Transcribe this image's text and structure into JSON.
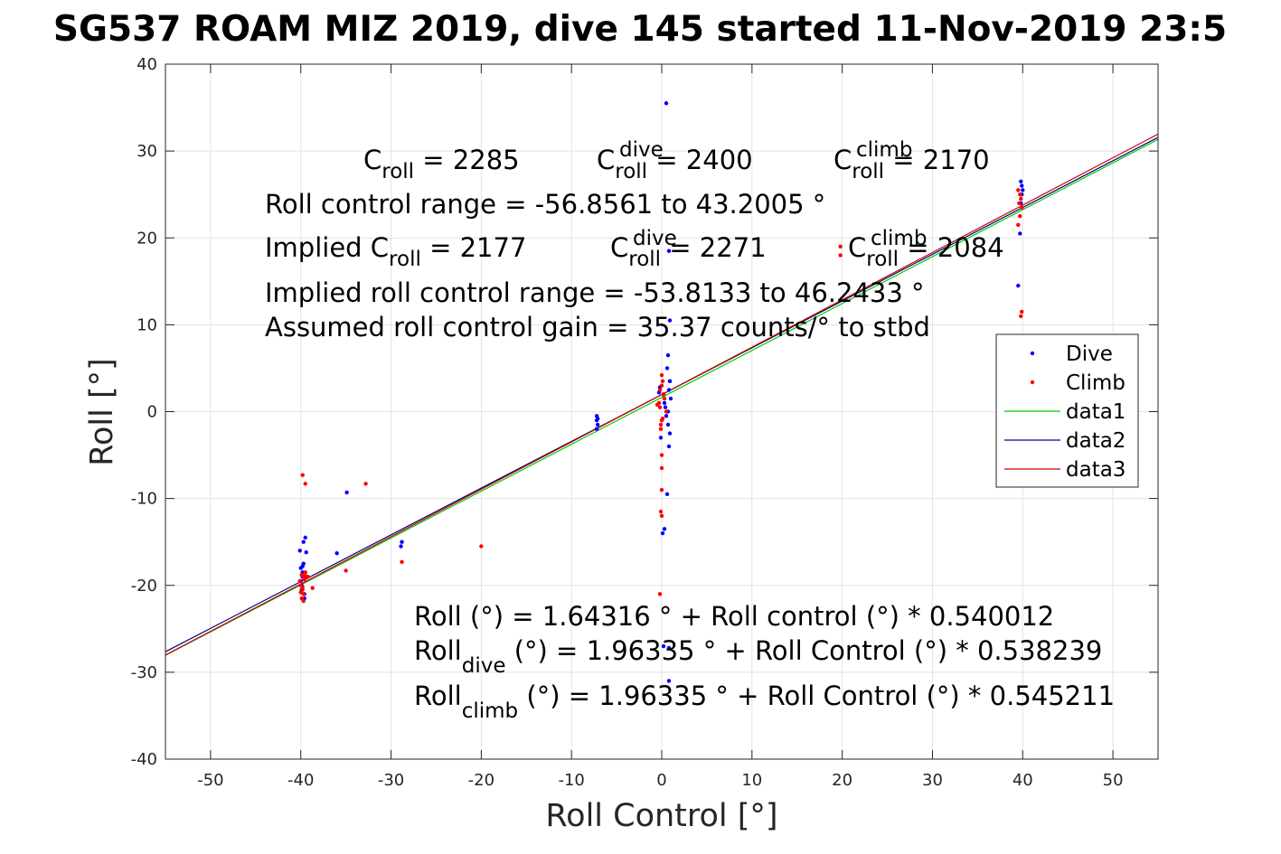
{
  "chart_data": {
    "type": "scatter",
    "title": "SG537 ROAM MIZ 2019, dive 145 started 11-Nov-2019 23:5",
    "xlabel": "Roll Control [°]",
    "ylabel": "Roll [°]",
    "xlim": [
      -55,
      55
    ],
    "ylim": [
      -40,
      40
    ],
    "xticks": [
      -50,
      -40,
      -30,
      -20,
      -10,
      0,
      10,
      20,
      30,
      40,
      50
    ],
    "yticks": [
      -40,
      -30,
      -20,
      -10,
      0,
      10,
      20,
      30,
      40
    ],
    "grid": true,
    "legend_position": "right",
    "legend": [
      {
        "label": "Dive",
        "color": "#0000ff",
        "marker": "dot"
      },
      {
        "label": "Climb",
        "color": "#ff0000",
        "marker": "dot"
      },
      {
        "label": "data1",
        "color": "#00cc00",
        "marker": "line"
      },
      {
        "label": "data2",
        "color": "#000080",
        "marker": "line"
      },
      {
        "label": "data3",
        "color": "#cc0000",
        "marker": "line"
      }
    ],
    "lines": [
      {
        "name": "data1",
        "color": "#00cc00",
        "x": [
          -55,
          55
        ],
        "y": [
          -28.05,
          31.34
        ]
      },
      {
        "name": "data2",
        "color": "#000080",
        "x": [
          -55,
          55
        ],
        "y": [
          -27.64,
          31.57
        ]
      },
      {
        "name": "data3",
        "color": "#cc0000",
        "x": [
          -55,
          55
        ],
        "y": [
          -28.02,
          31.95
        ]
      }
    ],
    "series": [
      {
        "name": "Dive",
        "color": "#0000ff",
        "x": [
          -40,
          -39.8,
          -39.7,
          -39.9,
          -39.6,
          -39.5,
          -40.1,
          -39.8,
          -39.7,
          -39.9,
          -40,
          -39.6,
          -39.5,
          -39.8,
          -39.4,
          -36,
          -34.9,
          -28.9,
          -28.8,
          -7.2,
          -7.2,
          -7.1,
          -7.2,
          -7.1,
          0.5,
          0.8,
          0.9,
          0.7,
          0.6,
          0.9,
          0.8,
          1.0,
          0.4,
          -0.2,
          0.2,
          0.3,
          0.5,
          0.7,
          0.9,
          0.8,
          0.6,
          0.3,
          0.1,
          -0.1,
          -0.3,
          0.2,
          0.8,
          0.8,
          0.7,
          0.9,
          39.8,
          39.9,
          40.0,
          39.9,
          39.7,
          39.5,
          39.8
        ],
        "y": [
          -19.5,
          -18.5,
          -17.5,
          -20.5,
          -21.0,
          -14.5,
          -16.0,
          -19.0,
          -15.0,
          -20.0,
          -18.0,
          -21.5,
          -19.0,
          -17.8,
          -16.2,
          -16.3,
          -9.3,
          -15.5,
          -15.0,
          -0.5,
          -1.0,
          -1.5,
          -2.0,
          -0.8,
          35.5,
          18.5,
          10.5,
          6.5,
          5.0,
          3.5,
          2.5,
          1.5,
          0.5,
          2.8,
          2.0,
          1.0,
          -0.5,
          -1.5,
          -2.5,
          -4.0,
          -9.5,
          -13.5,
          -14.0,
          -3.0,
          2.2,
          -27.0,
          -31.0,
          -27.2,
          0.0,
          3.5,
          26.5,
          26.0,
          25.5,
          25.0,
          20.5,
          14.5,
          24.0
        ]
      },
      {
        "name": "Climb",
        "color": "#ff0000",
        "x": [
          -40,
          -39.8,
          -39.7,
          -39.9,
          -39.6,
          -39.5,
          -40.1,
          -39.8,
          -39.7,
          -39.9,
          -40,
          -39.6,
          -39.5,
          -39.2,
          -38.7,
          -39.8,
          -39.5,
          -35.0,
          -32.8,
          -28.8,
          -20.0,
          -0.5,
          -0.2,
          0.0,
          0.1,
          0.3,
          0.5,
          0.0,
          -0.1,
          0.2,
          0.0,
          -0.3,
          -0.2,
          0.1,
          -0.1,
          0.0,
          0.0,
          0.0,
          -0.1,
          0.0,
          -0.2,
          19.8,
          19.8,
          39.5,
          39.7,
          39.8,
          39.6,
          39.9,
          39.7,
          39.5,
          39.9,
          39.8
        ],
        "y": [
          -20.0,
          -20.5,
          -21.0,
          -21.5,
          -19.0,
          -18.5,
          -19.5,
          -20.2,
          -21.8,
          -18.8,
          -20.8,
          -19.3,
          -18.9,
          -19.0,
          -20.3,
          -7.3,
          -8.3,
          -18.3,
          -8.3,
          -17.3,
          -15.5,
          0.8,
          2.5,
          4.2,
          3.5,
          1.5,
          0.0,
          -1.0,
          -2.0,
          2.0,
          3.0,
          1.0,
          0.5,
          -0.8,
          -1.5,
          -5.0,
          -6.5,
          -9.0,
          -11.5,
          -12.0,
          -21.0,
          18.0,
          19.0,
          25.5,
          25.0,
          24.5,
          24.0,
          23.5,
          22.5,
          21.5,
          11.5,
          11.0
        ]
      }
    ],
    "annotations": {
      "croll": {
        "base": "C",
        "sub": "roll",
        "value": " = 2285"
      },
      "croll_dive": {
        "base": "C",
        "sup": "dive",
        "sub": "roll",
        "value": " = 2400"
      },
      "croll_climb": {
        "base": "C",
        "sup": "climb",
        "sub": "roll",
        "value": " = 2170"
      },
      "roll_range": "Roll control range = -56.8561 to 43.2005 °",
      "implied_croll": {
        "prefix": "Implied C",
        "sub": "roll",
        "value": " = 2177"
      },
      "implied_dive": {
        "base": "C",
        "sup": "dive",
        "sub": "roll",
        "value": " = 2271"
      },
      "implied_climb": {
        "base": "C",
        "sup": "climb",
        "sub": "roll",
        "value": " = 2084"
      },
      "implied_range": "Implied roll control range = -53.8133 to 46.2433 °",
      "gain": "Assumed roll control gain = 35.37 counts/° to stbd",
      "fit_all": "Roll (°) = 1.64316 ° + Roll control (°) * 0.540012",
      "fit_dive": {
        "base": "Roll",
        "sub": "dive",
        "rest": " (°) = 1.96335 ° + Roll Control (°) * 0.538239"
      },
      "fit_climb": {
        "base": "Roll",
        "sub": "climb",
        "rest": " (°) = 1.96335 ° + Roll Control (°) * 0.545211"
      }
    }
  }
}
